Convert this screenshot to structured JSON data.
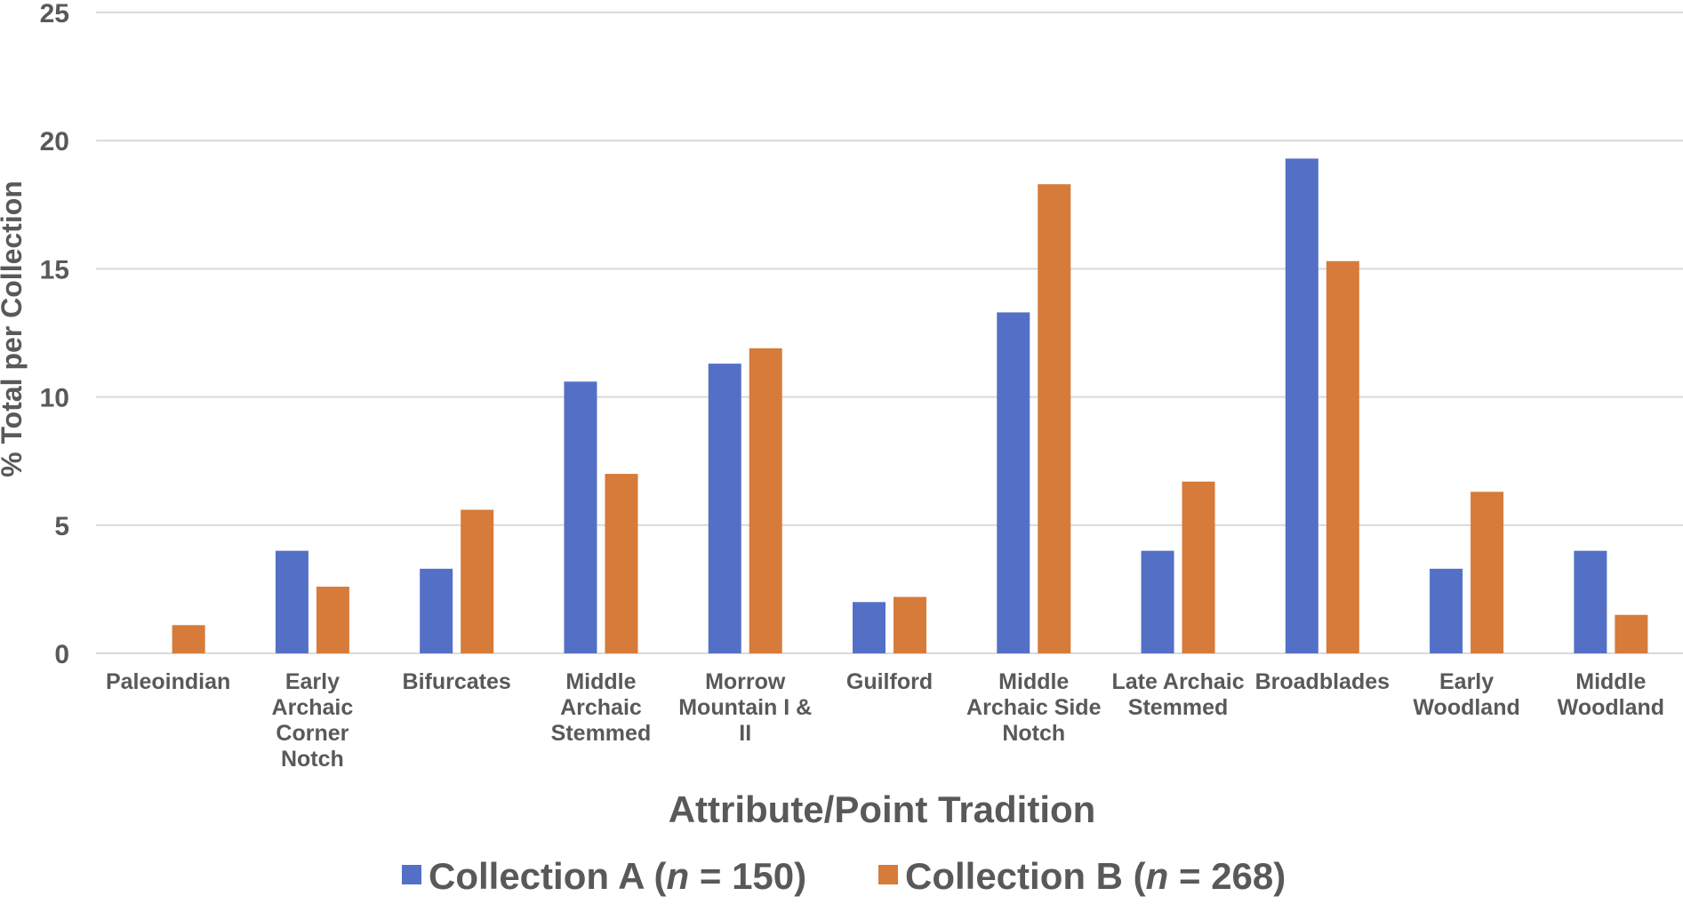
{
  "chart_data": {
    "type": "bar",
    "title": "",
    "xlabel": "Attribute/Point Tradition",
    "ylabel": "% Total per Collection",
    "ylim": [
      0,
      25
    ],
    "yticks": [
      "0",
      "5",
      "10",
      "15",
      "20",
      "25"
    ],
    "grid": true,
    "legend_position": "bottom",
    "categories": [
      [
        "Paleoindian"
      ],
      [
        "Early",
        "Archaic",
        "Corner",
        "Notch"
      ],
      [
        "Bifurcates"
      ],
      [
        "Middle",
        "Archaic",
        "Stemmed"
      ],
      [
        "Morrow",
        "Mountain I &",
        "II"
      ],
      [
        "Guilford"
      ],
      [
        "Middle",
        "Archaic Side",
        "Notch"
      ],
      [
        "Late Archaic",
        "Stemmed"
      ],
      [
        "Broadblades"
      ],
      [
        "Early",
        "Woodland"
      ],
      [
        "Middle",
        "Woodland"
      ]
    ],
    "series": [
      {
        "legend_prefix": "Collection A (",
        "legend_italic": "n",
        "legend_suffix": " = 150)",
        "color": "#5470C6",
        "values": [
          0,
          4.0,
          3.3,
          10.6,
          11.3,
          2.0,
          13.3,
          4.0,
          19.3,
          3.3,
          4.0
        ]
      },
      {
        "legend_prefix": "Collection B (",
        "legend_italic": "n",
        "legend_suffix": " = 268)",
        "color": "#D67B3A",
        "values": [
          1.1,
          2.6,
          5.6,
          7.0,
          11.9,
          2.2,
          18.3,
          6.7,
          15.3,
          6.3,
          1.5
        ]
      }
    ],
    "colors": {
      "grid": "#d9d9d9",
      "text": "#595959"
    }
  }
}
